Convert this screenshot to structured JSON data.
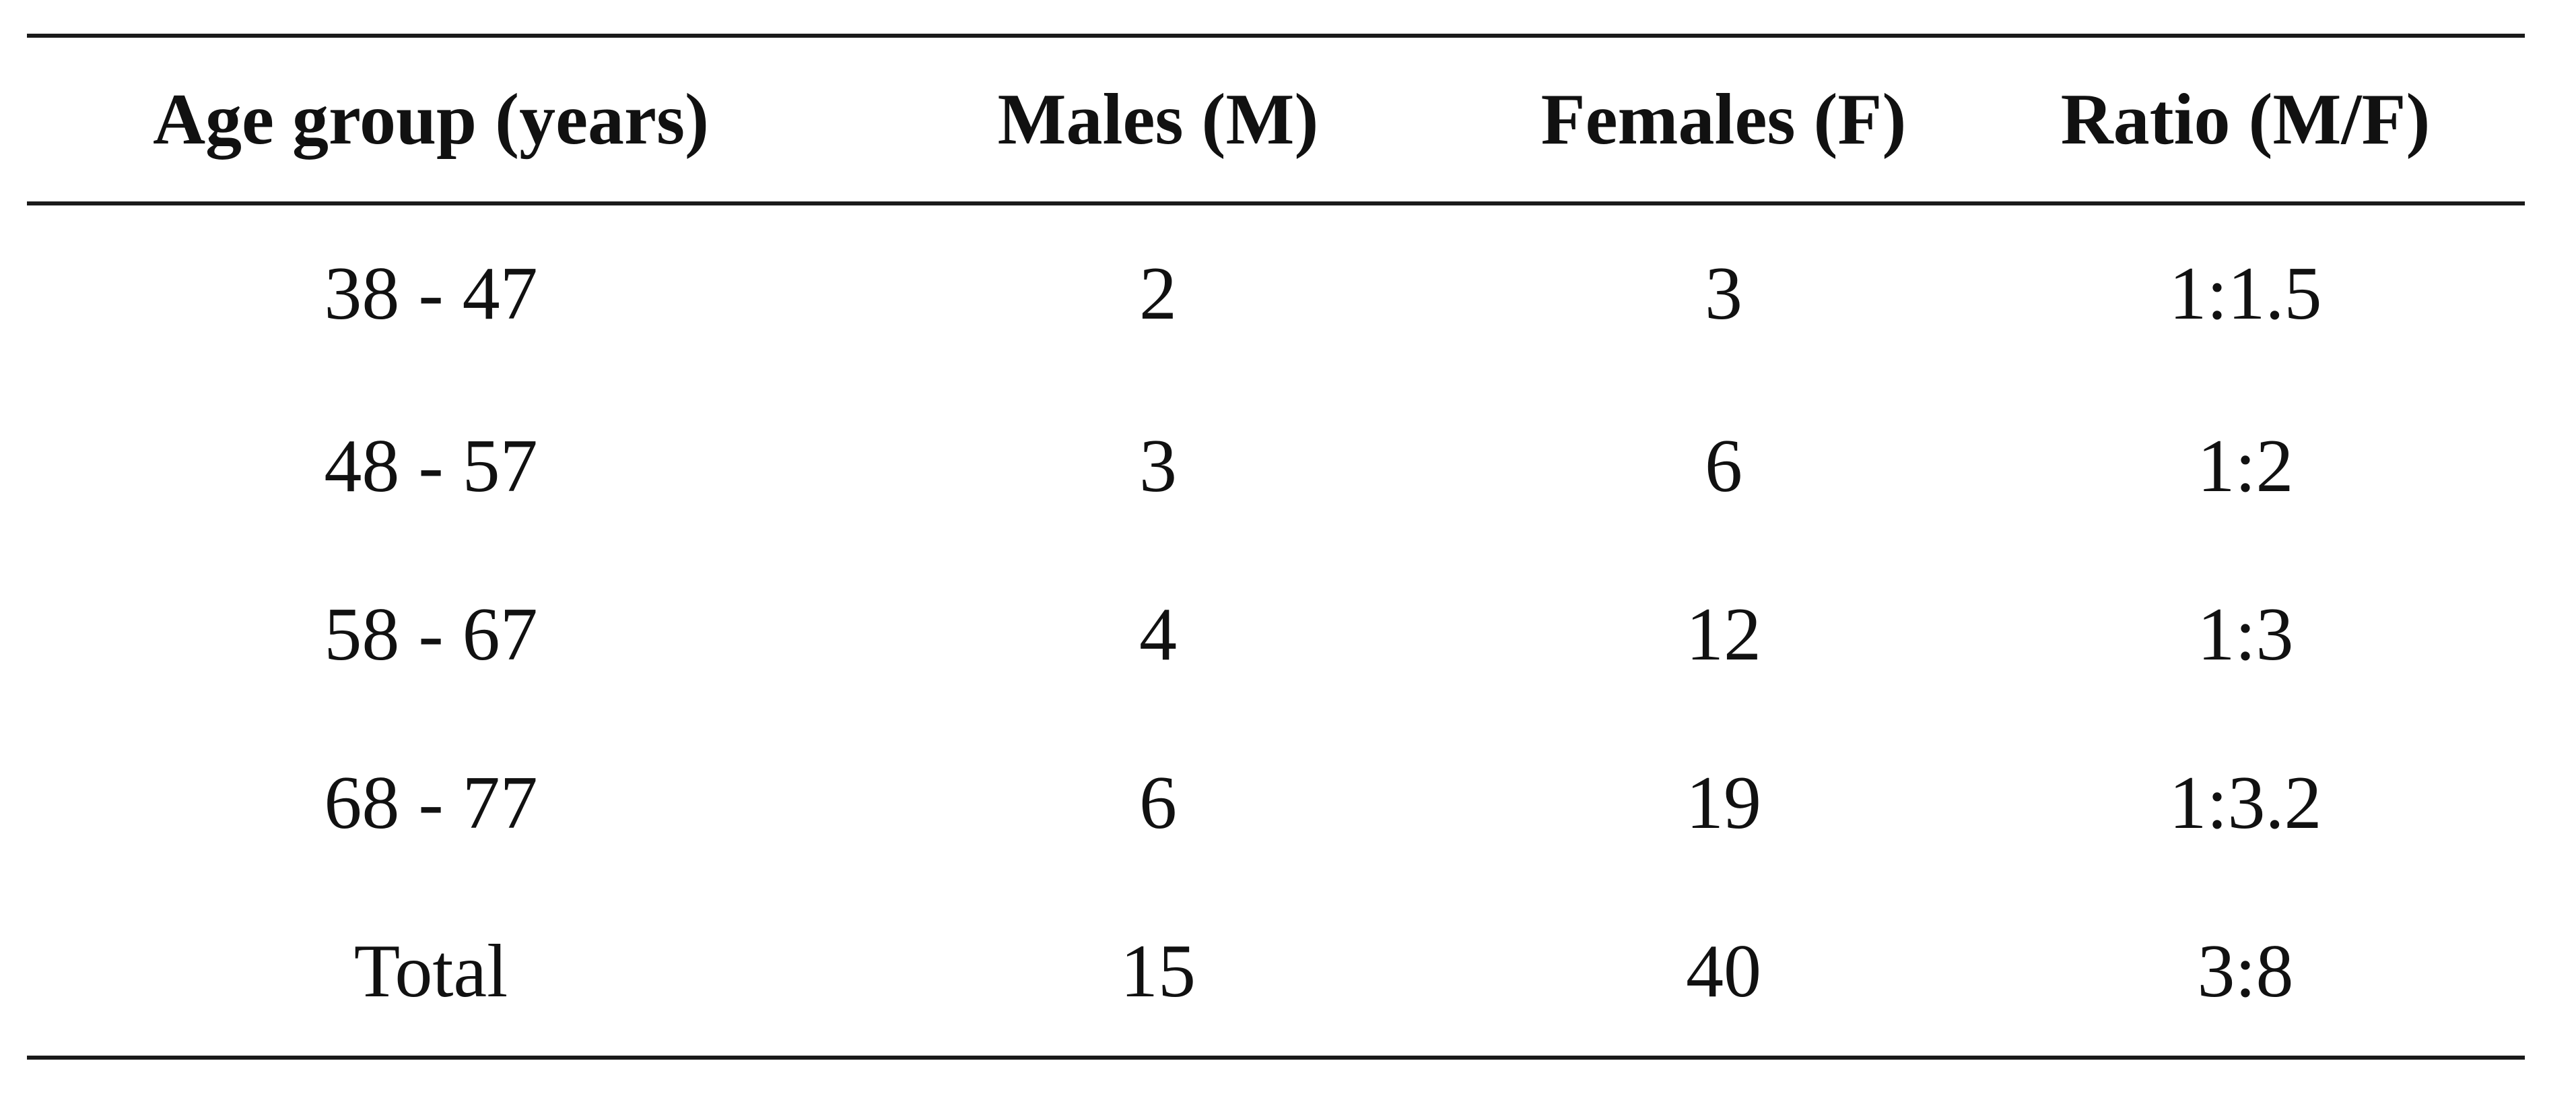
{
  "table": {
    "headers": [
      "Age group (years)",
      "Males (M)",
      "Females (F)",
      "Ratio (M/F)"
    ],
    "rows": [
      [
        "38 - 47",
        "2",
        "3",
        "1:1.5"
      ],
      [
        "48 - 57",
        "3",
        "6",
        "1:2"
      ],
      [
        "58 - 67",
        "4",
        "12",
        "1:3"
      ],
      [
        "68 - 77",
        "6",
        "19",
        "1:3.2"
      ],
      [
        "Total",
        "15",
        "40",
        "3:8"
      ]
    ]
  }
}
